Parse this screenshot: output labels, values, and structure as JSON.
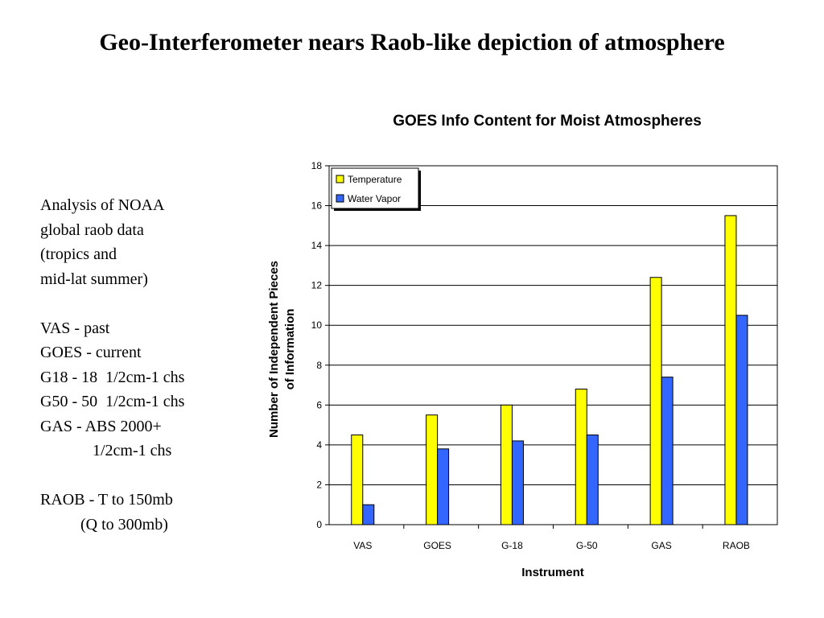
{
  "slide": {
    "title": "Geo-Interferometer nears Raob-like depiction of atmosphere"
  },
  "notes": {
    "lines": [
      "Analysis of NOAA",
      "global raob data",
      "(tropics and",
      "mid-lat summer)",
      "",
      "VAS - past",
      "GOES - current",
      "G18 - 18  1/2cm-1 chs",
      "G50 - 50  1/2cm-1 chs",
      "GAS - ABS 2000+",
      "             1/2cm-1 chs",
      "",
      "RAOB - T to 150mb",
      "          (Q to 300mb)"
    ]
  },
  "chart_data": {
    "type": "bar",
    "title": "GOES Info Content for Moist Atmospheres",
    "xlabel": "Instrument",
    "ylabel_lines": [
      "Number of Independent Pieces",
      "of Information"
    ],
    "categories": [
      "VAS",
      "GOES",
      "G-18",
      "G-50",
      "GAS",
      "RAOB"
    ],
    "series": [
      {
        "name": "Temperature",
        "color": "#ffff00",
        "values": [
          4.5,
          5.5,
          6.0,
          6.8,
          12.4,
          15.5
        ]
      },
      {
        "name": "Water Vapor",
        "color": "#3366ff",
        "values": [
          1.0,
          3.8,
          4.2,
          4.5,
          7.4,
          10.5
        ]
      }
    ],
    "ylim": [
      0,
      18
    ],
    "yticks": [
      "0",
      "2",
      "4",
      "6",
      "8",
      "10",
      "12",
      "14",
      "16",
      "18"
    ],
    "grid": true,
    "legend_position": "top-left"
  }
}
